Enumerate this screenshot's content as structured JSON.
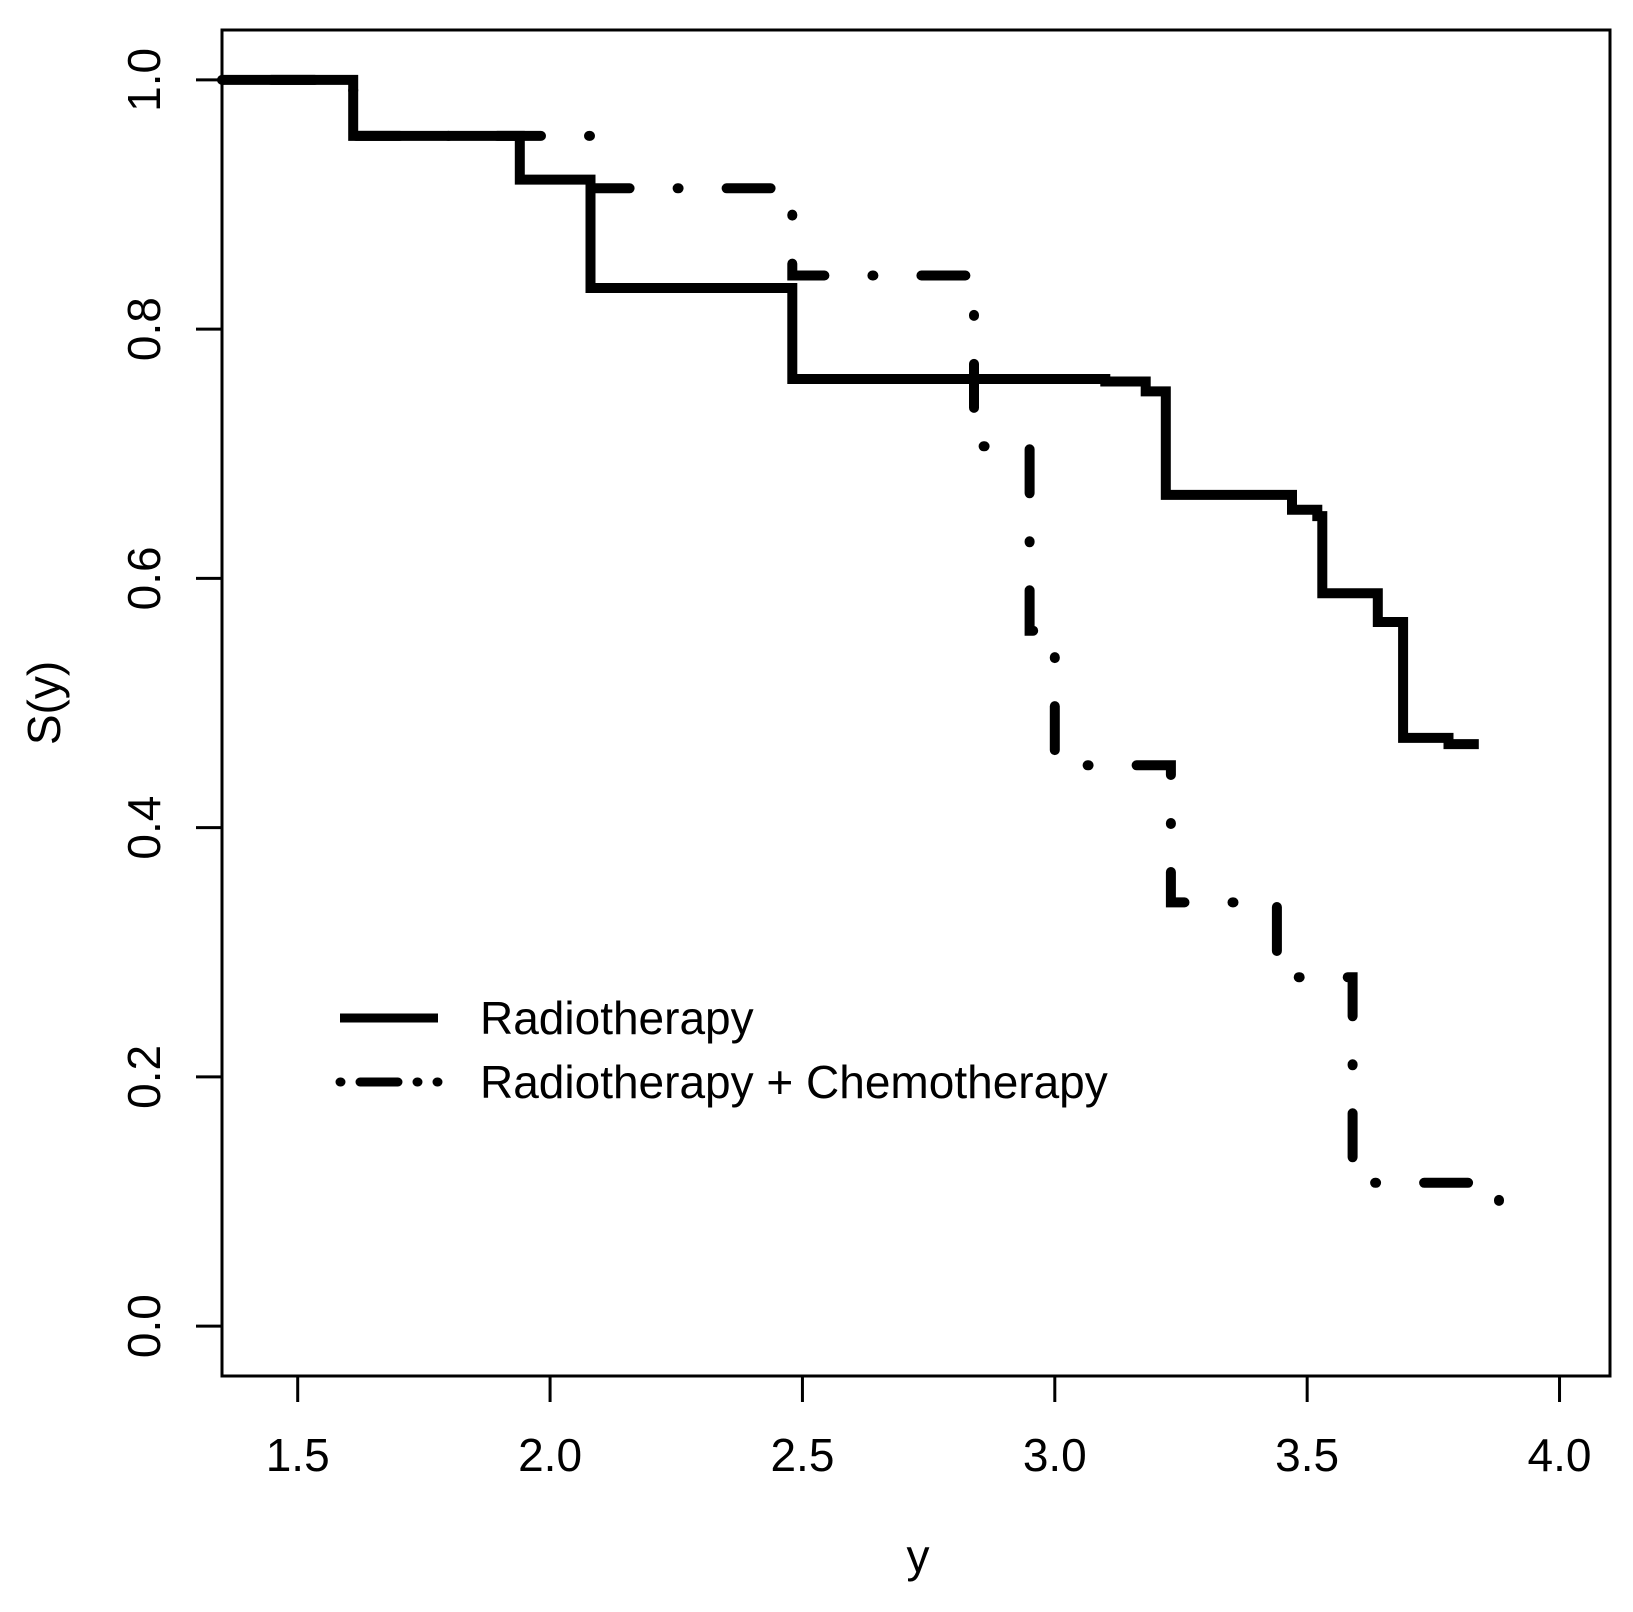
{
  "chart_data": {
    "type": "line",
    "subtype": "step",
    "title": "",
    "xlabel": "y",
    "ylabel": "S(y)",
    "xlim": [
      1.35,
      4.1
    ],
    "ylim": [
      -0.04,
      1.04
    ],
    "xticks": [
      1.5,
      2.0,
      2.5,
      3.0,
      3.5,
      4.0
    ],
    "xtick_labels": [
      "1.5",
      "2.0",
      "2.5",
      "3.0",
      "3.5",
      "4.0"
    ],
    "yticks": [
      0.0,
      0.2,
      0.4,
      0.6,
      0.8,
      1.0
    ],
    "ytick_labels": [
      "0.0",
      "0.2",
      "0.4",
      "0.6",
      "0.8",
      "1.0"
    ],
    "grid": false,
    "legend_position": "center-left",
    "series": [
      {
        "name": "Radiotherapy",
        "style": "solid",
        "color": "#000000",
        "times": [
          1.35,
          1.61,
          1.94,
          2.08,
          2.48,
          3.1,
          3.18,
          3.22,
          3.47,
          3.52,
          3.53,
          3.64,
          3.68,
          3.69,
          3.78
        ],
        "values": [
          1.0,
          0.955,
          0.92,
          0.833,
          0.76,
          0.758,
          0.75,
          0.667,
          0.655,
          0.65,
          0.588,
          0.565,
          0.565,
          0.472,
          0.467
        ],
        "end": 3.84
      },
      {
        "name": "Radiotherapy + Chemotherapy",
        "style": "dotdash",
        "color": "#000000",
        "times": [
          1.35,
          1.61,
          2.08,
          2.48,
          2.84,
          2.84,
          2.95,
          2.95,
          3.0,
          3.23,
          3.23,
          3.44,
          3.59,
          3.59,
          3.88
        ],
        "values": [
          1.0,
          0.955,
          0.913,
          0.843,
          0.833,
          0.706,
          0.696,
          0.558,
          0.45,
          0.44,
          0.34,
          0.28,
          0.24,
          0.115,
          0.09
        ],
        "end": 3.88
      }
    ]
  }
}
